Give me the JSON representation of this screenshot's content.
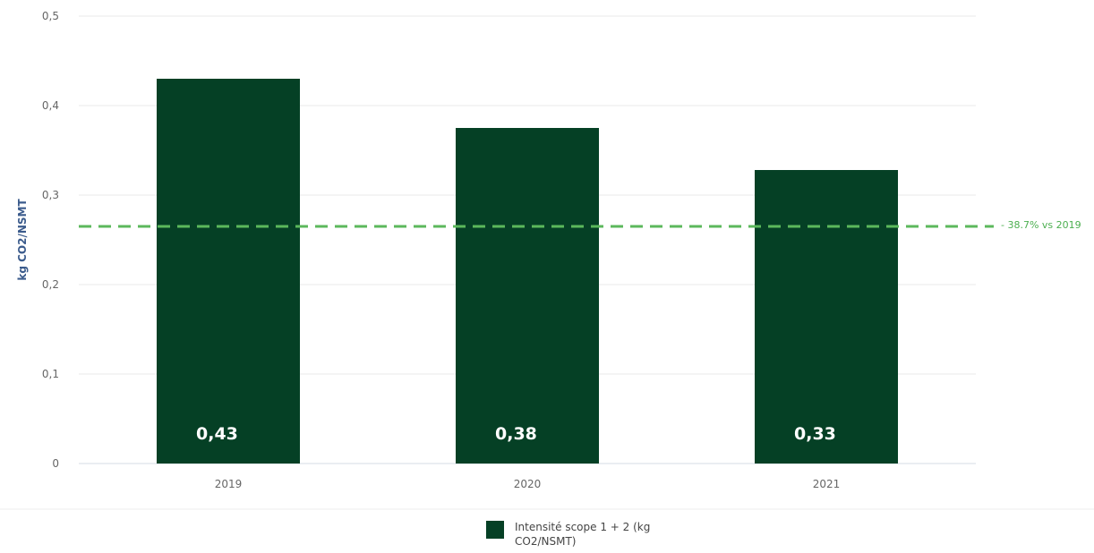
{
  "chart_data": {
    "type": "bar",
    "categories": [
      "2019",
      "2020",
      "2021"
    ],
    "values": [
      0.43,
      0.375,
      0.328
    ],
    "data_labels": [
      "0,43",
      "0,38",
      "0,33"
    ],
    "ylabel": "kg CO2/NSMT",
    "ylim": [
      0,
      0.5
    ],
    "yticks": [
      0,
      0.1,
      0.2,
      0.3,
      0.4,
      0.5
    ],
    "ytick_labels": [
      "0",
      "0,1",
      "0,2",
      "0,3",
      "0,4",
      "0,5"
    ],
    "grid": true,
    "series_name": "Intensité scope 1 + 2 (kg CO2/NSMT)",
    "legend_position": "bottom-center",
    "reference_line": {
      "value": 0.265,
      "label": "- 38.7% vs 2019",
      "style": "dashed"
    },
    "colors": {
      "bar": "#054025",
      "reference": "#5cb85c",
      "grid": "#e9e9e9"
    }
  }
}
